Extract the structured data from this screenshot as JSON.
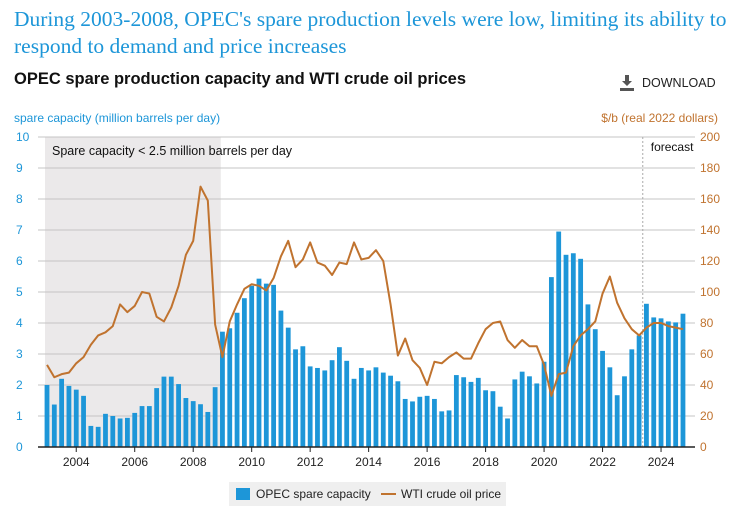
{
  "headline": "During 2003-2008, OPEC's spare production levels were low, limiting its ability to respond to demand and price increases",
  "subtitle": "OPEC spare production capacity and WTI crude oil prices",
  "download_label": "DOWNLOAD",
  "colors": {
    "bars": "#1d96d8",
    "line": "#c0732f",
    "shade": "#ebe9ea",
    "headline": "#1d96d8"
  },
  "chart_data": {
    "type": "bar+line",
    "title": "OPEC spare production capacity and WTI crude oil prices",
    "ylabel_left": "spare capacity (million barrels per day)",
    "ylabel_right": "$/b (real 2022 dollars)",
    "ylim_left": [
      0,
      10
    ],
    "ylim_right": [
      0,
      200
    ],
    "yticks_left": [
      "0",
      "1",
      "2",
      "3",
      "4",
      "5",
      "6",
      "7",
      "8",
      "9",
      "10"
    ],
    "yticks_right": [
      "0",
      "20",
      "40",
      "60",
      "80",
      "100",
      "120",
      "140",
      "160",
      "180",
      "200"
    ],
    "xtick_labels": [
      "2004",
      "2006",
      "2008",
      "2010",
      "2012",
      "2014",
      "2016",
      "2018",
      "2020",
      "2022",
      "2024"
    ],
    "x_start": "2003Q1",
    "x_frequency": "quarterly",
    "grid": true,
    "shaded_region": {
      "from": "2003Q1",
      "to": "2008Q4",
      "label": "Spare capacity < 2.5 million barrels per day"
    },
    "forecast": {
      "from": "2023Q3",
      "label": "forecast"
    },
    "legend": {
      "position": "bottom",
      "entries": [
        "OPEC spare capacity",
        "WTI crude oil price"
      ]
    },
    "series": [
      {
        "name": "OPEC spare capacity",
        "type": "bar",
        "axis": "left",
        "values": [
          2.0,
          1.37,
          2.2,
          1.97,
          1.85,
          1.65,
          0.68,
          0.65,
          1.07,
          1.0,
          0.92,
          0.94,
          1.1,
          1.32,
          1.32,
          1.9,
          2.27,
          2.27,
          2.03,
          1.58,
          1.48,
          1.38,
          1.13,
          1.93,
          3.72,
          3.83,
          4.33,
          4.8,
          5.2,
          5.43,
          5.27,
          5.23,
          4.4,
          3.85,
          3.15,
          3.25,
          2.6,
          2.55,
          2.47,
          2.8,
          3.22,
          2.78,
          2.2,
          2.55,
          2.47,
          2.57,
          2.4,
          2.3,
          2.12,
          1.55,
          1.47,
          1.62,
          1.65,
          1.55,
          1.15,
          1.18,
          2.32,
          2.25,
          2.1,
          2.23,
          1.83,
          1.8,
          1.3,
          0.92,
          2.18,
          2.43,
          2.28,
          2.05,
          2.75,
          5.48,
          6.95,
          6.2,
          6.25,
          6.07,
          4.6,
          3.8,
          3.1,
          2.57,
          1.67,
          2.28,
          3.15,
          3.6,
          4.62,
          4.18,
          4.15,
          4.05,
          4.02,
          4.3
        ]
      },
      {
        "name": "WTI crude oil price",
        "type": "line",
        "axis": "right",
        "values": [
          53,
          45,
          47,
          48,
          54,
          58,
          66,
          72,
          74,
          78,
          92,
          87,
          91,
          100,
          99,
          84,
          81,
          90,
          104,
          124,
          133,
          168,
          159,
          79,
          58,
          81,
          92,
          102,
          105,
          104,
          101,
          109,
          123,
          133,
          116,
          121,
          132,
          119,
          117,
          111,
          119,
          118,
          132,
          121,
          122,
          127,
          120,
          92,
          59,
          70,
          56,
          51,
          40,
          55,
          54,
          58,
          61,
          57,
          57,
          67,
          76,
          80,
          81,
          69,
          64,
          69,
          65,
          65,
          53,
          33,
          47,
          48,
          65,
          72,
          76,
          81,
          99,
          110,
          93,
          83,
          76,
          72,
          77,
          80,
          80,
          78,
          77,
          76
        ]
      }
    ]
  }
}
